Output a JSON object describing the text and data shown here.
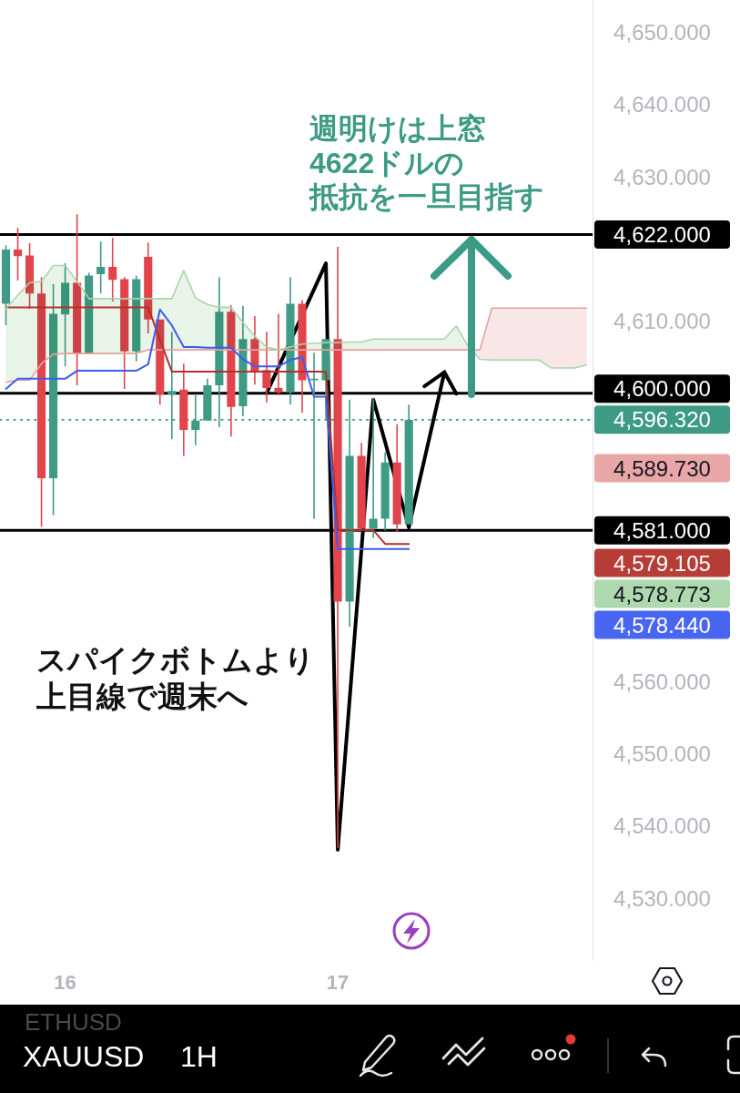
{
  "chart_data": {
    "type": "candlestick",
    "categories": [
      null,
      null,
      null,
      null,
      null,
      "16",
      null,
      null,
      null,
      null,
      null,
      null,
      null,
      null,
      null,
      null,
      null,
      null,
      null,
      null,
      null,
      null,
      null,
      null,
      null,
      null,
      null,
      null,
      "17",
      null,
      null,
      null,
      null,
      null,
      null,
      null,
      null,
      null,
      null,
      null,
      null,
      null,
      null,
      null,
      null,
      null,
      null,
      null,
      null,
      null
    ],
    "ohlc": [
      [
        4612.4,
        4620.5,
        4609.4,
        4619.9
      ],
      [
        4619.9,
        4622.9,
        4615.6,
        4619.0
      ],
      [
        4619.1,
        4620.8,
        4611.7,
        4613.8
      ],
      [
        4613.8,
        4616.1,
        4581.5,
        4588.2
      ],
      [
        4588.2,
        4615.1,
        4583.1,
        4611.0
      ],
      [
        4610.9,
        4618.0,
        4603.7,
        4615.3
      ],
      [
        4615.3,
        4624.8,
        4601.1,
        4605.5
      ],
      [
        4605.5,
        4616.7,
        4605.5,
        4616.3
      ],
      [
        4616.5,
        4621.0,
        4613.8,
        4617.5
      ],
      [
        4617.5,
        4621.5,
        4612.7,
        4615.7
      ],
      [
        4615.8,
        4616.1,
        4600.6,
        4605.8
      ],
      [
        4605.8,
        4616.3,
        4604.4,
        4615.8
      ],
      [
        4618.9,
        4620.9,
        4608.3,
        4610.2
      ],
      [
        4610.2,
        4610.2,
        4598.4,
        4599.8
      ],
      [
        4599.8,
        4608.5,
        4593.6,
        4600.3
      ],
      [
        4600.5,
        4604.1,
        4591.3,
        4594.9
      ],
      [
        4594.9,
        4599.7,
        4592.8,
        4596.2
      ],
      [
        4596.2,
        4602.0,
        4596.2,
        4601.1
      ],
      [
        4601.1,
        4616.1,
        4595.3,
        4611.3
      ],
      [
        4611.3,
        4612.2,
        4594.0,
        4598.1
      ],
      [
        4598.2,
        4612.1,
        4596.8,
        4607.5
      ],
      [
        4607.5,
        4610.7,
        4601.2,
        4603.1
      ],
      [
        4603.2,
        4608.5,
        4598.7,
        4600.7
      ],
      [
        4600.7,
        4611.0,
        4599.7,
        4600.1
      ],
      [
        4600.1,
        4616.1,
        4598.4,
        4612.4
      ],
      [
        4612.4,
        4612.9,
        4597.3,
        4601.8
      ],
      [
        4601.8,
        4605.6,
        4582.6,
        4602.0
      ],
      [
        4601.8,
        4607.5,
        4596.2,
        4607.5
      ],
      [
        4607.5,
        4620.3,
        4537.0,
        4571.1
      ],
      [
        4571.1,
        4599.1,
        4567.6,
        4591.3
      ],
      [
        4591.3,
        4593.1,
        4581.2,
        4581.2
      ],
      [
        4581.2,
        4599.3,
        4579.9,
        4582.6
      ],
      [
        4582.6,
        4591.8,
        4581.0,
        4590.4
      ],
      [
        4590.4,
        4595.7,
        4580.8,
        4581.8
      ],
      [
        4581.8,
        4598.4,
        4581.8,
        4596.3
      ],
      null,
      null,
      null,
      null,
      null,
      null,
      null,
      null,
      null,
      null,
      null,
      null,
      null,
      null,
      null
    ],
    "colors": [
      "#3f9b85",
      "#e2444c",
      "#e2444c",
      "#e2444c",
      "#3f9b85",
      "#3f9b85",
      "#e2444c",
      "#3f9b85",
      "#3f9b85",
      "#e2444c",
      "#e2444c",
      "#3f9b85",
      "#e2444c",
      "#e2444c",
      "#3f9b85",
      "#e2444c",
      "#3f9b85",
      "#3f9b85",
      "#3f9b85",
      "#e2444c",
      "#3f9b85",
      "#e2444c",
      "#e2444c",
      "#e2444c",
      "#3f9b85",
      "#e2444c",
      "#3f9b85",
      "#3f9b85",
      "#e2444c",
      "#3f9b85",
      "#e2444c",
      "#3f9b85",
      "#3f9b85",
      "#e2444c",
      "#3f9b85",
      null,
      null,
      null,
      null,
      null,
      null,
      null,
      null,
      null,
      null,
      null,
      null,
      null,
      null,
      null
    ],
    "series": [
      {
        "type": "line",
        "color": "#e8a0a0",
        "values": [
          4601.5,
          4601.8,
          4601.8,
          4604.1,
          4605.4,
          4605.5,
          4605.5,
          4605.5,
          4605.5,
          4605.5,
          4605.5,
          4605.5,
          4606.0,
          4606.0,
          4606.0,
          4606.0,
          4606.0,
          4606.0,
          4606.0,
          4606.0,
          4606.0,
          4606.0,
          4606.0,
          4606.0,
          4606.0,
          4606.0,
          4606.0,
          4606.0,
          4606.0,
          4606.0,
          4606.0,
          4606.0,
          4606.0,
          4606.0,
          4606.0,
          4606.0,
          4606.0,
          4606.0,
          4606.0,
          4606.0,
          4606.0,
          4611.8,
          4611.8,
          4611.8,
          4611.8,
          4611.8,
          4611.8,
          4611.8,
          4611.8,
          4611.8
        ],
        "lower": [
          null,
          null,
          null,
          null,
          null,
          null,
          null,
          null,
          null,
          null,
          null,
          null,
          null,
          null,
          null,
          null,
          null,
          null,
          null,
          null,
          null,
          null,
          null,
          null,
          null,
          null,
          null,
          null,
          null,
          null,
          null,
          null,
          null,
          null,
          null,
          null,
          null,
          null,
          null,
          4606.5,
          4604.7,
          4604.6,
          4604.6,
          4604.6,
          4604.6,
          4604.6,
          4603.5,
          4603.5,
          4603.5,
          4603.9
        ],
        "upper": [
          null,
          null,
          null,
          null,
          null,
          null,
          null,
          null,
          null,
          null,
          null,
          null,
          null,
          null,
          null,
          null,
          null,
          null,
          null,
          null,
          null,
          null,
          null,
          null,
          null,
          null,
          null,
          null,
          null,
          null,
          null,
          null,
          null,
          null,
          null,
          null,
          null,
          null,
          null,
          4606.0,
          4606.0,
          4611.8,
          4611.8,
          4611.8,
          4611.8,
          4611.8,
          4611.8,
          4611.8,
          4611.8,
          4611.8
        ]
      },
      {
        "type": "line",
        "color": "#b2312a",
        "values": [
          4611.9,
          4611.9,
          4611.9,
          4611.9,
          4611.9,
          4611.9,
          4611.9,
          4611.9,
          4611.9,
          4611.9,
          4611.9,
          4611.9,
          4611.9,
          4607.4,
          4603.0,
          4603.0,
          4603.0,
          4603.0,
          4603.0,
          4603.0,
          4603.0,
          4603.0,
          4603.0,
          4603.0,
          4603.0,
          4603.0,
          4603.0,
          4603.0,
          4581.0,
          4581.0,
          4581.0,
          4581.0,
          4579.1,
          4579.1,
          4579.1,
          null,
          null,
          null,
          null,
          null,
          null,
          null,
          null,
          null,
          null,
          null,
          null,
          null,
          null,
          null
        ]
      },
      {
        "type": "line",
        "color": "#a9d5a9",
        "values": [
          4611.7,
          4613.6,
          4615.3,
          4615.5,
          4617.7,
          4617.7,
          4615.5,
          4613.1,
          4613.1,
          4613.1,
          4613.1,
          4613.1,
          4613.1,
          4613.1,
          4613.1,
          4617.0,
          4613.2,
          4612.3,
          4611.9,
          4611.9,
          4609.8,
          4607.9,
          4606.4,
          4606.0,
          4606.4,
          4606.8,
          4606.9,
          4607.0,
          4607.0,
          4607.1,
          4607.1,
          4607.5,
          4607.5,
          4607.5,
          4607.5,
          4607.5,
          4607.5,
          4607.5,
          4609.3,
          4606.5,
          4604.7,
          4604.6,
          4604.6,
          4604.6,
          4604.6,
          4604.6,
          4603.5,
          4603.5,
          4603.5,
          4603.9
        ],
        "lower": [
          4601.5,
          4601.8,
          4601.8,
          4604.1,
          4605.4,
          4605.5,
          4605.5,
          4605.5,
          4605.5,
          4605.5,
          4605.5,
          4605.5,
          4606.0,
          4606.0,
          4606.0,
          4606.0,
          4606.0,
          4606.0,
          4606.0,
          4606.0,
          4606.0,
          4606.0,
          4606.0,
          4606.0,
          4606.0,
          4606.0,
          4606.0,
          4606.0,
          4606.0,
          4606.0,
          4606.0,
          4606.0,
          4606.0,
          4606.0,
          4606.0,
          4606.0,
          4606.0,
          4606.0,
          4606.0,
          4606.0,
          null,
          null,
          null,
          null,
          null,
          null,
          null,
          null,
          null,
          null
        ],
        "upper": [
          4611.7,
          4613.6,
          4615.3,
          4615.5,
          4617.7,
          4617.7,
          4615.5,
          4613.1,
          4613.1,
          4613.1,
          4613.1,
          4613.1,
          4613.1,
          4613.1,
          4613.1,
          4617.0,
          4613.2,
          4612.3,
          4611.9,
          4611.9,
          4609.8,
          4607.9,
          4606.4,
          4606.0,
          4606.4,
          4606.8,
          4606.9,
          4607.0,
          4607.0,
          4607.1,
          4607.1,
          4607.5,
          4607.5,
          4607.5,
          4607.5,
          4607.5,
          4607.5,
          4607.5,
          4609.3,
          4606.5,
          null,
          null,
          null,
          null,
          null,
          null,
          null,
          null,
          null,
          null
        ]
      },
      {
        "type": "line",
        "color": "#3d5cf0",
        "values": [
          4600.6,
          4602.0,
          4602.0,
          4602.0,
          4602.0,
          4602.0,
          4603.1,
          4603.1,
          4603.1,
          4603.1,
          4603.1,
          4603.1,
          4604.0,
          4611.6,
          4609.4,
          4606.4,
          4606.4,
          4606.3,
          4606.3,
          4606.3,
          4604.7,
          4603.7,
          4603.7,
          4603.7,
          4604.6,
          4605.0,
          4599.5,
          4599.5,
          4578.4,
          4578.4,
          4578.4,
          4578.4,
          4578.4,
          4578.4,
          4578.4,
          null,
          null,
          null,
          null,
          null,
          null,
          null,
          null,
          null,
          null,
          null,
          null,
          null,
          null,
          null
        ]
      },
      {
        "type": "line",
        "color": "#000000",
        "values": [
          null,
          null,
          null,
          null,
          null,
          null,
          null,
          null,
          null,
          null,
          null,
          null,
          null,
          null,
          null,
          null,
          null,
          null,
          null,
          null,
          null,
          null,
          4600.0,
          null,
          null,
          null,
          null,
          4618.0,
          4536.7,
          null,
          null,
          4599.1,
          null,
          null,
          4581.4,
          null,
          null,
          4602.9,
          null,
          null,
          null,
          null,
          null,
          null,
          null,
          null,
          null,
          null,
          null,
          null
        ]
      }
    ],
    "ylim": [
      4521.3,
      4654.5
    ],
    "yticks": [
      {
        "value": 4530,
        "label": "4,530.000"
      },
      {
        "value": 4540,
        "label": "4,540.000"
      },
      {
        "value": 4550,
        "label": "4,550.000"
      },
      {
        "value": 4560,
        "label": "4,560.000"
      },
      {
        "value": 4610,
        "label": "4,610.000"
      },
      {
        "value": 4630,
        "label": "4,630.000"
      },
      {
        "value": 4640,
        "label": "4,640.000"
      },
      {
        "value": 4650,
        "label": "4,650.000"
      }
    ],
    "ref_lines": [
      {
        "axis": "y",
        "value": 4622,
        "label": "4,622.000",
        "color": "#000000",
        "line_style": "solid"
      },
      {
        "axis": "y",
        "value": 4600,
        "label": "4,600.000",
        "color": "#000000",
        "line_style": "solid"
      },
      {
        "axis": "y",
        "value": 4596.32,
        "label": "4,596.320",
        "color": "#3d9a85",
        "line_style": "dotted"
      },
      {
        "axis": "y",
        "value": 4581,
        "label": "4,581.000",
        "color": "#000000",
        "line_style": "solid"
      }
    ],
    "annotations": [
      "週明けは上窓",
      "4622ドルの",
      "抵抗を一旦目指す",
      "スパイクボトムより",
      "上目線で週末へ",
      "4,589.730",
      "4,579.105",
      "4,578.773",
      "4,578.440",
      "XAUUSD",
      "1H",
      "ETHUSD"
    ]
  }
}
